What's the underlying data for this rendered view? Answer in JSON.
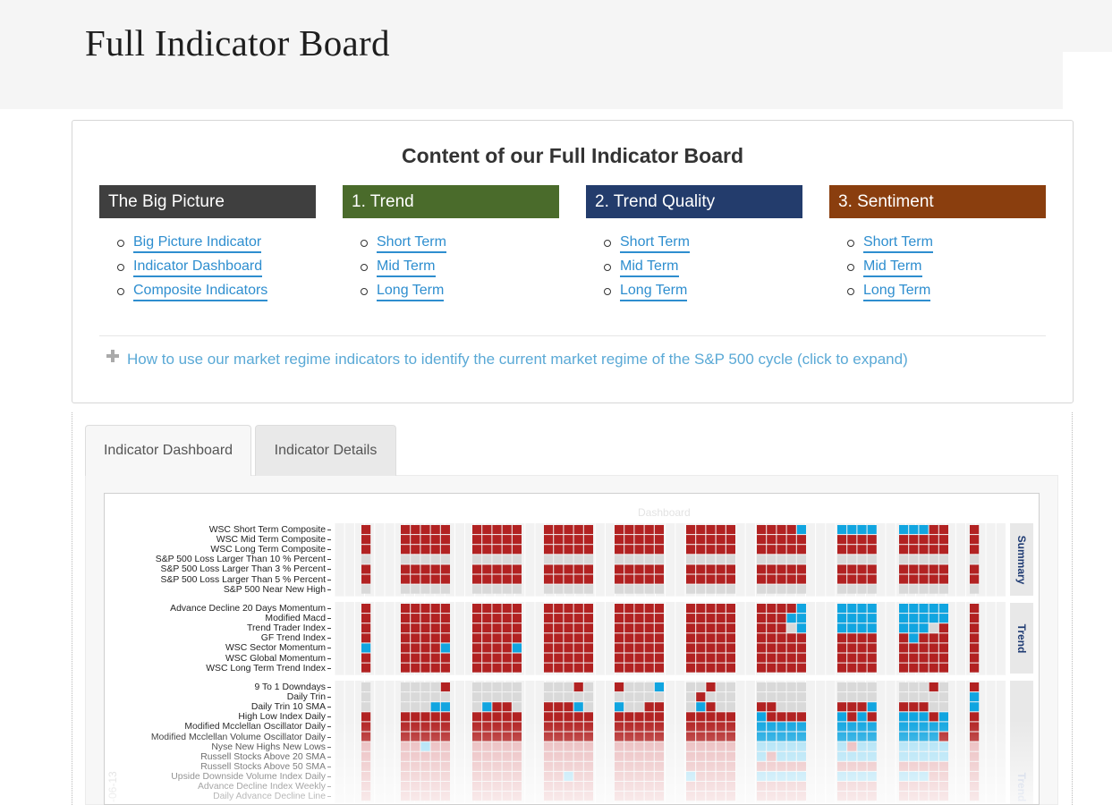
{
  "page": {
    "title": "Full Indicator Board"
  },
  "content": {
    "heading": "Content of our Full Indicator Board",
    "columns": [
      {
        "title": "The Big Picture",
        "color": "#3f3f3f",
        "links": [
          "Big Picture Indicator",
          "Indicator Dashboard",
          "Composite Indicators"
        ]
      },
      {
        "title": "1. Trend",
        "color": "#4a6b2b",
        "links": [
          "Short Term",
          "Mid Term",
          "Long Term"
        ]
      },
      {
        "title": "2. Trend Quality",
        "color": "#233c6c",
        "links": [
          "Short Term",
          "Mid Term",
          "Long Term"
        ]
      },
      {
        "title": "3. Sentiment",
        "color": "#8a3e0e",
        "links": [
          "Short Term",
          "Mid Term",
          "Long Term"
        ]
      }
    ],
    "expand_text": "How to use our market regime indicators to identify the current market regime of the S&P 500 cycle (click to expand)",
    "link_color": "#2e8ecf"
  },
  "tabs": [
    {
      "label": "Indicator Dashboard",
      "active": true
    },
    {
      "label": "Indicator Details",
      "active": false
    }
  ],
  "chart_data": {
    "type": "heatmap",
    "title": "Dashboard",
    "colors": {
      "red": "#b22222",
      "blue": "#11a5e0",
      "gray": "#d9d9d9",
      "light_red": "#e8b4b6",
      "light_blue": "#a6dff5"
    },
    "panels": [
      {
        "name": "Summary",
        "rows": [
          "WSC Short Term Composite",
          "WSC Mid Term Composite",
          "WSC Long Term Composite",
          "S&P 500 Loss Larger Than 10 % Percent",
          "S&P 500 Loss Larger Than 3 % Percent",
          "S&P 500 Loss Larger Than 5 % Percent",
          "S&P 500 Near New High"
        ]
      },
      {
        "name": "Trend",
        "rows": [
          "Advance Decline 20 Days Momentum",
          "Modified Macd",
          "Trend Trader Index",
          "GF Trend Index",
          "WSC Sector Momentum",
          "WSC Global Momentum",
          "WSC Long Term Trend Index"
        ]
      },
      {
        "name": "Trend",
        "rows": [
          "9 To 1 Downdays",
          "Daily Trin",
          "Daily Trin  10 SMA",
          "High Low Index Daily",
          "Modified Mcclellan Oscillator Daily",
          "Modified Mcclellan Volume Oscillator Daily",
          "Nyse New Highs New Lows",
          "Russell Stocks Above 20 SMA",
          "Russell Stocks Above 50 SMA",
          "Upside Downside Volume Index Daily",
          "Advance Decline Index Weekly",
          "Daily Advance Decline Line"
        ]
      }
    ],
    "x_label_partial": "-06-13",
    "groups": [
      {
        "summary": [
          "R",
          "R",
          "R",
          "G",
          "R",
          "R",
          "G"
        ],
        "trend": [
          "R",
          "R",
          "R",
          "R",
          "B",
          "R",
          "R"
        ],
        "lower": [
          "G",
          "G",
          "G",
          "R",
          "R",
          "R",
          "R",
          "R",
          "R",
          "R",
          "R",
          "R"
        ]
      },
      {
        "summary": [
          "RRRRR",
          "RRRRR",
          "RRRRR",
          "GGGGG",
          "RRRRR",
          "RRRRR",
          "GGGGG"
        ],
        "trend": [
          "RRRRR",
          "RRRRR",
          "RRRRR",
          "RRRRR",
          "RRRRB",
          "RRRRR",
          "RRRRR"
        ],
        "lower": [
          "GGGGR",
          "GGGGG",
          "GGGBB",
          "RRRRR",
          "RRRRR",
          "RRRRR",
          "RRBRR",
          "RRRRR",
          "RRRRR",
          "RRRRR",
          "RRRRR",
          "RRRRR"
        ]
      },
      {
        "summary": [
          "RRRRR",
          "RRRRR",
          "RRRRR",
          "GGGGG",
          "RRRRR",
          "RRRRR",
          "GGGGG"
        ],
        "trend": [
          "RRRRR",
          "RRRRR",
          "RRRRR",
          "RRRRR",
          "RRRRB",
          "RRRRR",
          "RRRRR"
        ],
        "lower": [
          "GGGGG",
          "GGGGG",
          "GBRRG",
          "RRRRR",
          "RRRRR",
          "RRRRR",
          "RRRRR",
          "RRRRR",
          "RRRRR",
          "RRRRR",
          "RRRRR",
          "RRRRR"
        ]
      },
      {
        "summary": [
          "RRRRR",
          "RRRRR",
          "RRRRR",
          "GGGGG",
          "RRRRR",
          "RRRRR",
          "GGGGG"
        ],
        "trend": [
          "RRRRR",
          "RRRRR",
          "RRRRR",
          "RRRRR",
          "RRRRR",
          "RRRRR",
          "RRRRR"
        ],
        "lower": [
          "GGGRG",
          "GGGGG",
          "RRRBG",
          "RRRRR",
          "RRRRR",
          "RRRRR",
          "RRRRR",
          "RRRRR",
          "RRRRR",
          "RRBRR",
          "RRRRR",
          "RRRRR"
        ]
      },
      {
        "summary": [
          "RRRRR",
          "RRRRR",
          "RRRRR",
          "GGGGG",
          "RRRRR",
          "RRRRR",
          "GGGGG"
        ],
        "trend": [
          "RRRRR",
          "RRRRR",
          "RRRRR",
          "RRRRR",
          "RRRRR",
          "RRRRR",
          "RRRRR"
        ],
        "lower": [
          "RGGGB",
          "GGGGG",
          "BGGRR",
          "RRRRR",
          "RRRRR",
          "RRRRR",
          "RRRRR",
          "RRRRR",
          "RRRRR",
          "RRRRR",
          "RRRRR",
          "RRRRR"
        ]
      },
      {
        "summary": [
          "RRRRR",
          "RRRRR",
          "RRRRR",
          "GGGGG",
          "RRRRR",
          "RRRRR",
          "GGGGG"
        ],
        "trend": [
          "RRRRR",
          "RRRRR",
          "RRRRR",
          "RRRRR",
          "RRRRR",
          "RRRRR",
          "RRRRR"
        ],
        "lower": [
          "GGRGG",
          "GRGGG",
          "GBRGG",
          "RRRRR",
          "RRRRR",
          "RRRRR",
          "RRRRR",
          "RRRRR",
          "RRRRR",
          "BRRRR",
          "RRRRR",
          "RRRRR"
        ]
      },
      {
        "summary": [
          "RRRRB",
          "RRRRR",
          "RRRRR",
          "GGGGG",
          "RRRRR",
          "RRRRR",
          "GGGGG"
        ],
        "trend": [
          "RRRRB",
          "RRRBB",
          "RRRGB",
          "RRRRR",
          "RRRRR",
          "RRRRR",
          "RRRRR"
        ],
        "lower": [
          "GGGGG",
          "GGGGG",
          "RRGGG",
          "BRRRR",
          "BBBBB",
          "BBBBB",
          "BBBBB",
          "BRBBB",
          "RRRRR",
          "BBBBB",
          "RRRRR",
          "RRRRR"
        ]
      },
      {
        "summary": [
          "BBBB",
          "RRRR",
          "RRRR",
          "GGGG",
          "RRRR",
          "RRRR",
          "GGGG"
        ],
        "trend": [
          "BBBB",
          "BBBB",
          "BBBB",
          "RRRR",
          "RRRR",
          "RRRR",
          "RRRR"
        ],
        "lower": [
          "GGGG",
          "GGGG",
          "RRRB",
          "BRBR",
          "BBBB",
          "BBBB",
          "BRBB",
          "BBBB",
          "RRRR",
          "BBBB",
          "RRRR",
          "RRRR"
        ]
      },
      {
        "summary": [
          "BBBRR",
          "RRRRR",
          "RRRRR",
          "GGGGG",
          "RRRRR",
          "RRRRR",
          "GGGGG"
        ],
        "trend": [
          "BBBBB",
          "BBBBB",
          "BBBGR",
          "RBRRR",
          "RRRRR",
          "RRRRR",
          "RRRRR"
        ],
        "lower": [
          "GGGRG",
          "GGGGG",
          "RRRGG",
          "BBBRB",
          "BBBBB",
          "BBBBR",
          "BBBBB",
          "BBBBB",
          "RRRRR",
          "BBBRR",
          "RRRRR",
          "RRRRR"
        ]
      },
      {
        "summary": [
          "R",
          "R",
          "R",
          "G",
          "R",
          "R",
          "G"
        ],
        "trend": [
          "R",
          "R",
          "R",
          "R",
          "R",
          "R",
          "R"
        ],
        "lower": [
          "R",
          "B",
          "B",
          "R",
          "R",
          "R",
          "R",
          "R",
          "R",
          "R",
          "R",
          "R"
        ]
      }
    ]
  }
}
